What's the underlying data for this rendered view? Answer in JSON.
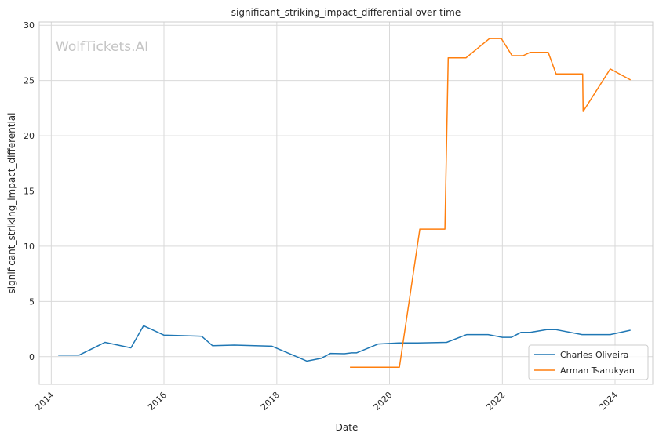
{
  "chart_data": {
    "type": "line",
    "title": "significant_striking_impact_differential over time",
    "xlabel": "Date",
    "ylabel": "significant_striking_impact_differential",
    "watermark": "WolfTickets.AI",
    "xlim": [
      "2013-10-15",
      "2024-09-01"
    ],
    "ylim": [
      -2.5,
      30.3
    ],
    "x_ticks": [
      "2014-01-01",
      "2016-01-01",
      "2018-01-01",
      "2020-01-01",
      "2022-01-01",
      "2024-01-01"
    ],
    "x_tick_labels": [
      "2014",
      "2016",
      "2018",
      "2020",
      "2022",
      "2024"
    ],
    "y_ticks": [
      0,
      5,
      10,
      15,
      20,
      25,
      30
    ],
    "y_tick_labels": [
      "0",
      "5",
      "10",
      "15",
      "20",
      "25",
      "30"
    ],
    "grid": true,
    "legend_position": "lower-right",
    "series": [
      {
        "name": "Charles Oliveira",
        "color": "#1f77b4",
        "x": [
          "2014-02-15",
          "2014-07-01",
          "2014-12-15",
          "2015-06-01",
          "2015-08-22",
          "2016-01-01",
          "2016-09-01",
          "2016-11-10",
          "2017-04-01",
          "2017-12-01",
          "2018-07-15",
          "2018-10-15",
          "2018-12-15",
          "2019-03-15",
          "2019-05-01",
          "2019-06-01",
          "2019-10-20",
          "2020-03-01",
          "2020-07-01",
          "2021-01-05",
          "2021-05-15",
          "2021-10-01",
          "2022-01-01",
          "2022-03-01",
          "2022-05-01",
          "2022-07-01",
          "2022-10-15",
          "2022-12-15",
          "2023-06-01",
          "2023-12-01",
          "2024-04-10"
        ],
        "y": [
          0.15,
          0.15,
          1.3,
          0.8,
          2.8,
          1.95,
          1.85,
          1.0,
          1.05,
          0.95,
          -0.4,
          -0.15,
          0.3,
          0.27,
          0.35,
          0.35,
          1.15,
          1.25,
          1.25,
          1.3,
          2.0,
          2.0,
          1.75,
          1.75,
          2.2,
          2.2,
          2.45,
          2.45,
          2.0,
          2.0,
          2.4
        ]
      },
      {
        "name": "Arman Tsarukyan",
        "color": "#ff7f0e",
        "x": [
          "2019-04-20",
          "2020-03-05",
          "2020-07-15",
          "2020-12-25",
          "2021-01-15",
          "2021-05-10",
          "2021-10-10",
          "2021-12-25",
          "2022-03-05",
          "2022-05-15",
          "2022-07-01",
          "2022-10-25",
          "2022-12-15",
          "2023-06-05",
          "2023-06-08",
          "2023-12-01",
          "2024-04-10"
        ],
        "y": [
          -0.95,
          -0.95,
          11.55,
          11.55,
          27.05,
          27.05,
          28.8,
          28.8,
          27.25,
          27.25,
          27.55,
          27.55,
          25.6,
          25.6,
          22.2,
          26.05,
          25.05
        ]
      }
    ]
  }
}
